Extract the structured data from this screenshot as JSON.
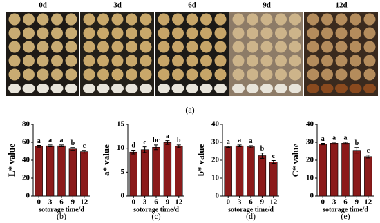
{
  "photo": {
    "labels": [
      "0d",
      "3d",
      "6d",
      "9d",
      "12d"
    ],
    "caption": "(a)"
  },
  "chart_data": [
    {
      "type": "bar",
      "ylabel": "L* value",
      "xlabel": "sotorage time/d",
      "caption": "(b)",
      "categories": [
        "0",
        "3",
        "6",
        "9",
        "12"
      ],
      "values": [
        55.5,
        56,
        56,
        52.5,
        49.5
      ],
      "errors": [
        1,
        1,
        1,
        1.5,
        1.5
      ],
      "annotations": [
        "a",
        "a",
        "a",
        "b",
        "c"
      ],
      "ylim": [
        0,
        80
      ],
      "yticks": [
        0,
        20,
        40,
        60,
        80
      ],
      "color": "#8b1a1a"
    },
    {
      "type": "bar",
      "ylabel": "a* value",
      "xlabel": "sotorage time/d",
      "caption": "(c)",
      "categories": [
        "0",
        "3",
        "6",
        "9",
        "12"
      ],
      "values": [
        9.2,
        9.7,
        10.2,
        11.2,
        10.4
      ],
      "errors": [
        0.4,
        0.6,
        0.5,
        0.4,
        0.3
      ],
      "annotations": [
        "d",
        "c",
        "bc",
        "a",
        "b"
      ],
      "ylim": [
        0,
        15
      ],
      "yticks": [
        0,
        5,
        10,
        15
      ],
      "color": "#8b1a1a"
    },
    {
      "type": "bar",
      "ylabel": "b* value",
      "xlabel": "sotorage time/d",
      "caption": "(d)",
      "categories": [
        "0",
        "3",
        "6",
        "9",
        "12"
      ],
      "values": [
        27.5,
        28,
        27.5,
        22.5,
        19
      ],
      "errors": [
        0.4,
        0.5,
        0.6,
        1.5,
        0.8
      ],
      "annotations": [
        "a",
        "a",
        "a",
        "b",
        "c"
      ],
      "ylim": [
        0,
        40
      ],
      "yticks": [
        0,
        10,
        20,
        30,
        40
      ],
      "color": "#8b1a1a"
    },
    {
      "type": "bar",
      "ylabel": "C* value",
      "xlabel": "sotorage time/d",
      "caption": "(e)",
      "categories": [
        "0",
        "3",
        "6",
        "9",
        "12"
      ],
      "values": [
        29,
        29.5,
        29.5,
        25.5,
        22
      ],
      "errors": [
        0.4,
        0.5,
        0.5,
        1.5,
        0.8
      ],
      "annotations": [
        "a",
        "a",
        "a",
        "b",
        "c"
      ],
      "ylim": [
        0,
        40
      ],
      "yticks": [
        0,
        10,
        20,
        30,
        40
      ],
      "color": "#8b1a1a"
    }
  ]
}
